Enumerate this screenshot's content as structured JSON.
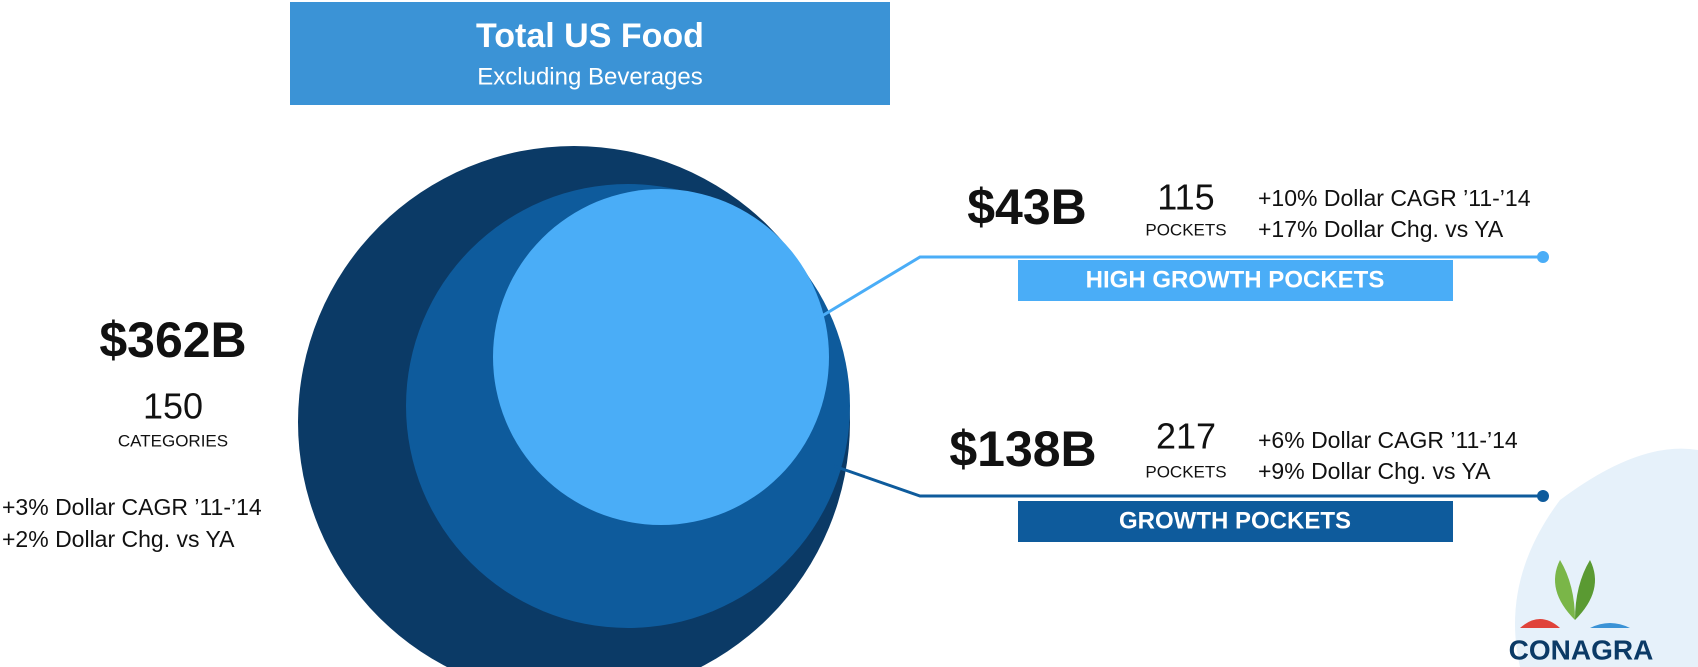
{
  "header": {
    "title": "Total US Food",
    "subtitle": "Excluding Beverages"
  },
  "total": {
    "value": "$362B",
    "count": "150",
    "count_label": "CATEGORIES",
    "stats": [
      "+3% Dollar CAGR ’11-’14",
      "+2% Dollar Chg. vs YA"
    ]
  },
  "segments": [
    {
      "value": "$43B",
      "count": "115",
      "count_label": "POCKETS",
      "stats": [
        "+10% Dollar CAGR ’11-’14",
        "+17% Dollar Chg. vs YA"
      ],
      "label": "HIGH GROWTH POCKETS"
    },
    {
      "value": "$138B",
      "count": "217",
      "count_label": "POCKETS",
      "stats": [
        "+6% Dollar CAGR ’11-’14",
        "+9% Dollar Chg. vs YA"
      ],
      "label": "GROWTH POCKETS"
    }
  ],
  "logo": "CONAGRA"
}
